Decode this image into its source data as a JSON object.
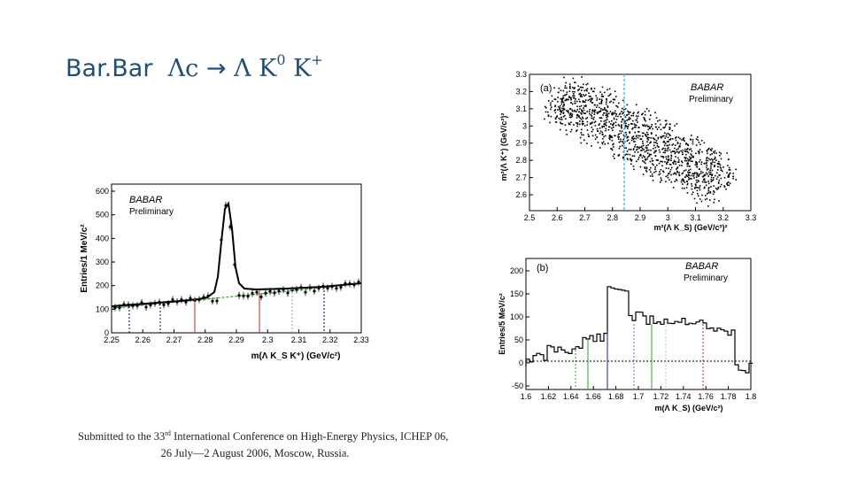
{
  "slide": {
    "title_prefix": "Bar.Bar",
    "title_lambda_c": "Λc",
    "title_arrow": "→",
    "title_rest": "Λ K",
    "title_sup0": "0",
    "title_kplus": "K",
    "title_supplus": "+"
  },
  "caption": {
    "line1_a": "Submitted to the 33",
    "line1_sup": "rd",
    "line1_b": " International Conference on High-Energy Physics, ICHEP 06,",
    "line2": "26 July—2 August 2006, Moscow, Russia."
  },
  "colors": {
    "title": "#1f4e79",
    "cyan_line": "#4fc3f7",
    "fit_green": "#33aa33"
  },
  "plot_left": {
    "logo": "BABAR",
    "preliminary": "Preliminary",
    "ylabel": "Entries/1 MeV/c²",
    "xlabel": "m(Λ K_S K⁺) (GeV/c²)",
    "xticks": [
      "2.25",
      "2.26",
      "2.27",
      "2.28",
      "2.29",
      "2.3",
      "2.31",
      "2.32",
      "2.33"
    ],
    "yticks": [
      "0",
      "100",
      "200",
      "300",
      "400",
      "500",
      "600"
    ]
  },
  "plot_a": {
    "panel": "(a)",
    "logo": "BABAR",
    "preliminary": "Preliminary",
    "ylabel": "m²(Λ K⁺) (GeV/c²)²",
    "xlabel": "m²(Λ K_S) (GeV/c²)²",
    "xticks": [
      "2.5",
      "2.6",
      "2.7",
      "2.8",
      "2.9",
      "3",
      "3.1",
      "3.2",
      "3.3"
    ],
    "yticks": [
      "2.6",
      "2.7",
      "2.8",
      "2.9",
      "3",
      "3.1",
      "3.2",
      "3.3"
    ]
  },
  "plot_b": {
    "panel": "(b)",
    "logo": "BABAR",
    "preliminary": "Preliminary",
    "ylabel": "Entries/5 MeV/c²",
    "xlabel": "m(Λ K_S) (GeV/c²)",
    "xticks": [
      "1.6",
      "1.62",
      "1.64",
      "1.66",
      "1.68",
      "1.7",
      "1.72",
      "1.74",
      "1.76",
      "1.78",
      "1.8"
    ],
    "yticks": [
      "-50",
      "0",
      "50",
      "100",
      "150",
      "200"
    ]
  }
}
